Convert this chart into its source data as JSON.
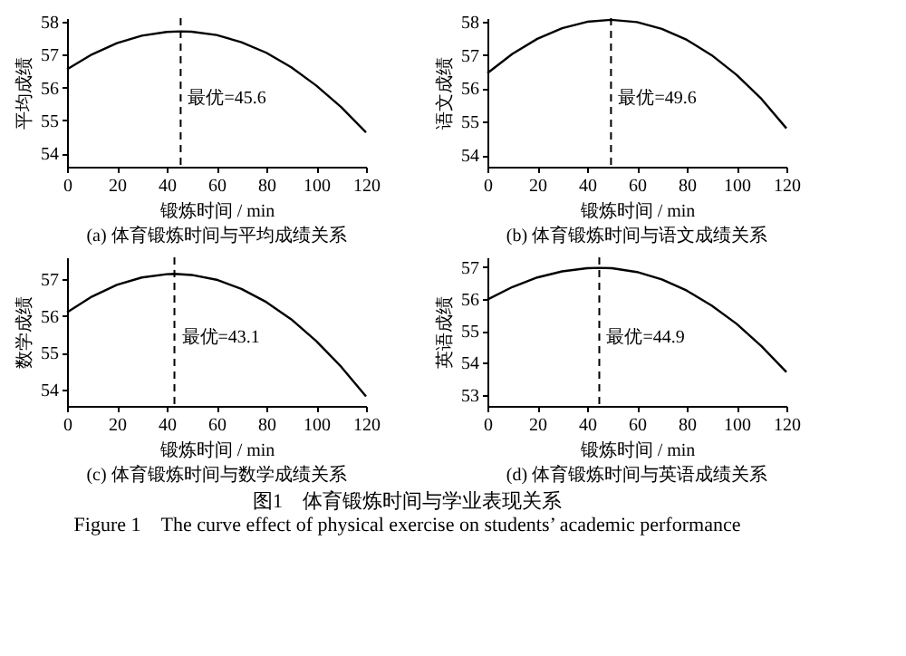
{
  "chart_data": [
    {
      "type": "line",
      "title": "(a) 体育锻炼时间与平均成绩关系",
      "xlabel": "锻炼时间 / min",
      "ylabel": "平均成绩",
      "xlim": [
        0,
        120
      ],
      "xticks": [
        0,
        20,
        40,
        60,
        80,
        100,
        120
      ],
      "ylim": [
        53.6,
        58.1
      ],
      "yticks": [
        54,
        55,
        56,
        57,
        58
      ],
      "grid": false,
      "marker": "none",
      "line_style": "solid",
      "x": [
        0,
        10,
        20,
        30,
        40,
        45.6,
        50,
        60,
        70,
        80,
        90,
        100,
        110,
        120
      ],
      "series": [
        {
          "color": "#000000",
          "values": [
            56.55,
            57.0,
            57.34,
            57.57,
            57.68,
            57.7,
            57.69,
            57.59,
            57.37,
            57.05,
            56.61,
            56.06,
            55.41,
            54.64
          ]
        }
      ],
      "ref_lines": [
        {
          "axis": "x",
          "value": 45.6,
          "label": "最优=45.6",
          "line_style": "dashed",
          "color": "#000000"
        }
      ]
    },
    {
      "type": "line",
      "title": "(b) 体育锻炼时间与语文成绩关系",
      "xlabel": "锻炼时间 / min",
      "ylabel": "语文成绩",
      "xlim": [
        0,
        120
      ],
      "xticks": [
        0,
        20,
        40,
        60,
        80,
        100,
        120
      ],
      "ylim": [
        53.65,
        58.1
      ],
      "yticks": [
        54,
        55,
        56,
        57,
        58
      ],
      "grid": false,
      "marker": "none",
      "line_style": "solid",
      "x": [
        0,
        10,
        20,
        30,
        40,
        49.6,
        60,
        70,
        80,
        90,
        100,
        110,
        120
      ],
      "series": [
        {
          "color": "#000000",
          "values": [
            56.45,
            57.03,
            57.48,
            57.8,
            57.99,
            58.05,
            57.98,
            57.78,
            57.45,
            56.99,
            56.4,
            55.68,
            54.8
          ]
        }
      ],
      "ref_lines": [
        {
          "axis": "x",
          "value": 49.6,
          "label": "最优=49.6",
          "line_style": "dashed",
          "color": "#000000"
        }
      ]
    },
    {
      "type": "line",
      "title": "(c) 体育锻炼时间与数学成绩关系",
      "xlabel": "锻炼时间 / min",
      "ylabel": "数学成绩",
      "xlim": [
        0,
        120
      ],
      "xticks": [
        0,
        20,
        40,
        60,
        80,
        100,
        120
      ],
      "ylim": [
        53.55,
        57.6
      ],
      "yticks": [
        54,
        55,
        56,
        57
      ],
      "grid": false,
      "marker": "none",
      "line_style": "solid",
      "x": [
        0,
        10,
        20,
        30,
        40,
        43.1,
        50,
        60,
        70,
        80,
        90,
        100,
        110,
        120
      ],
      "series": [
        {
          "color": "#000000",
          "values": [
            56.1,
            56.53,
            56.85,
            57.05,
            57.14,
            57.15,
            57.12,
            56.99,
            56.74,
            56.38,
            55.91,
            55.32,
            54.62,
            53.81
          ]
        }
      ],
      "ref_lines": [
        {
          "axis": "x",
          "value": 43.1,
          "label": "最优=43.1",
          "line_style": "dashed",
          "color": "#000000"
        }
      ]
    },
    {
      "type": "line",
      "title": "(d) 体育锻炼时间与英语成绩关系",
      "xlabel": "锻炼时间 / min",
      "ylabel": "英语成绩",
      "xlim": [
        0,
        120
      ],
      "xticks": [
        0,
        20,
        40,
        60,
        80,
        100,
        120
      ],
      "ylim": [
        52.65,
        57.3
      ],
      "yticks": [
        53,
        54,
        55,
        56,
        57
      ],
      "grid": false,
      "marker": "none",
      "line_style": "solid",
      "x": [
        0,
        10,
        20,
        30,
        40,
        44.9,
        50,
        60,
        70,
        80,
        90,
        100,
        110,
        120
      ],
      "series": [
        {
          "color": "#000000",
          "values": [
            55.98,
            56.37,
            56.67,
            56.86,
            56.96,
            56.97,
            56.96,
            56.84,
            56.61,
            56.26,
            55.79,
            55.22,
            54.52,
            53.71
          ]
        }
      ],
      "ref_lines": [
        {
          "axis": "x",
          "value": 44.9,
          "label": "最优=44.9",
          "line_style": "dashed",
          "color": "#000000"
        }
      ],
      "annotations": [
        "图1　体育锻炼时间与学业表现关系",
        "Figure 1　The curve effect of physical exercise on students’ academic performance"
      ]
    }
  ]
}
